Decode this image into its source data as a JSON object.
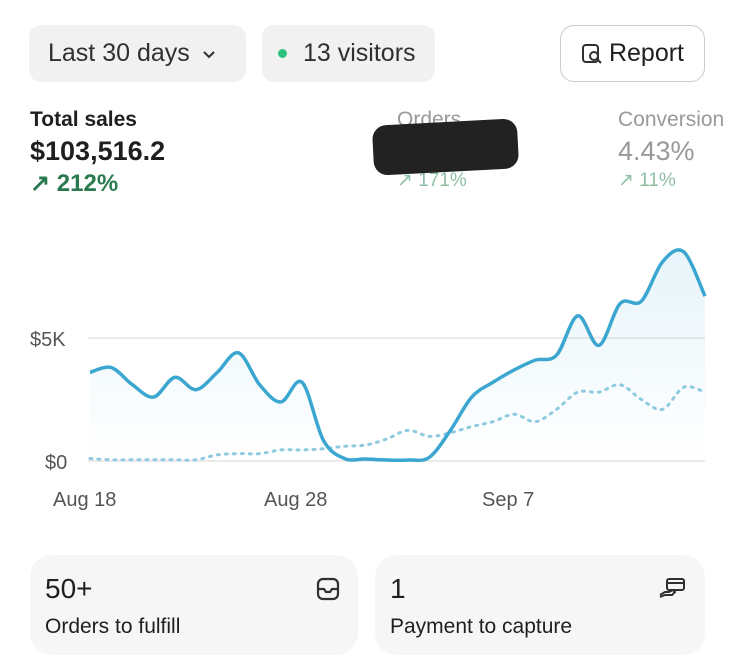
{
  "header": {
    "date_range": "Last 30 days",
    "visitors": "13 visitors",
    "report_label": "Report",
    "live_dot_color": "#2ec27e"
  },
  "metrics": [
    {
      "label": "Total sales",
      "value": "$103,516.2",
      "change": "212%",
      "color": "#1f1f1f",
      "change_color": "#2b7a4f"
    },
    {
      "label": "Orders",
      "value": "",
      "change": "171%",
      "redacted": true
    },
    {
      "label": "Conversion",
      "value": "4.43%",
      "change": "11%"
    }
  ],
  "chart_data": {
    "type": "line",
    "x": [
      "Aug 18",
      "Aug 19",
      "Aug 20",
      "Aug 21",
      "Aug 22",
      "Aug 23",
      "Aug 24",
      "Aug 25",
      "Aug 26",
      "Aug 27",
      "Aug 28",
      "Aug 29",
      "Aug 30",
      "Aug 31",
      "Sep 1",
      "Sep 2",
      "Sep 3",
      "Sep 4",
      "Sep 5",
      "Sep 6",
      "Sep 7",
      "Sep 8",
      "Sep 9",
      "Sep 10",
      "Sep 11",
      "Sep 12",
      "Sep 13",
      "Sep 14",
      "Sep 15",
      "Sep 16"
    ],
    "xticks": [
      "Aug 18",
      "Aug 28",
      "Sep 7"
    ],
    "yticks": [
      "$0",
      "$5K"
    ],
    "ylim": [
      0,
      9000
    ],
    "grid": true,
    "line_color": "#3ba7d0",
    "series": [
      {
        "style": "solid",
        "values": [
          3600,
          3800,
          3100,
          2600,
          3400,
          2900,
          3600,
          4400,
          3100,
          2400,
          3200,
          850,
          100,
          80,
          40,
          40,
          150,
          1250,
          2600,
          3200,
          3700,
          4100,
          4300,
          5900,
          4700,
          6400,
          6500,
          8100,
          8500,
          6700
        ]
      },
      {
        "style": "dotted",
        "values": [
          100,
          50,
          50,
          50,
          50,
          50,
          250,
          300,
          300,
          450,
          450,
          500,
          600,
          650,
          900,
          1250,
          1000,
          1150,
          1400,
          1600,
          1900,
          1600,
          2100,
          2800,
          2800,
          3100,
          2500,
          2100,
          3000,
          2800
        ]
      }
    ]
  },
  "cards": [
    {
      "value": "50+",
      "label": "Orders to fulfill",
      "icon": "inbox-icon"
    },
    {
      "value": "1",
      "label": "Payment to capture",
      "icon": "hand-card-icon"
    }
  ]
}
